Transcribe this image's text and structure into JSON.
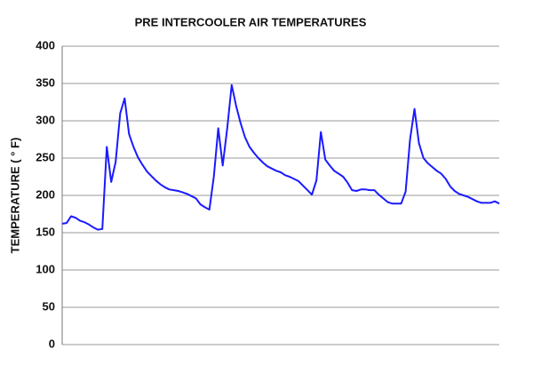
{
  "chart_data": {
    "type": "line",
    "title": "PRE INTERCOOLER AIR TEMPERATURES",
    "y_label": "TEMPERATURE ( ° F)",
    "color": "#1a1aff",
    "values": [
      162,
      163,
      172,
      170,
      166,
      164,
      161,
      157,
      154,
      155,
      265,
      218,
      245,
      310,
      330,
      282,
      265,
      251,
      241,
      232,
      226,
      220,
      215,
      211,
      208,
      207,
      206,
      204,
      202,
      199,
      196,
      188,
      184,
      181,
      225,
      290,
      240,
      290,
      348,
      320,
      297,
      278,
      265,
      257,
      250,
      244,
      239,
      236,
      233,
      231,
      227,
      225,
      222,
      219,
      213,
      207,
      201,
      220,
      285,
      248,
      240,
      233,
      229,
      225,
      217,
      207,
      206,
      208,
      208,
      207,
      207,
      201,
      196,
      191,
      189,
      189,
      189,
      205,
      275,
      316,
      270,
      250,
      243,
      238,
      233,
      229,
      222,
      212,
      206,
      202,
      200,
      198,
      195,
      192,
      190,
      190,
      190,
      192,
      189
    ],
    "ylim": [
      0,
      400
    ],
    "yticks": [
      0,
      50,
      100,
      150,
      200,
      250,
      300,
      350,
      400
    ],
    "grid": true
  }
}
